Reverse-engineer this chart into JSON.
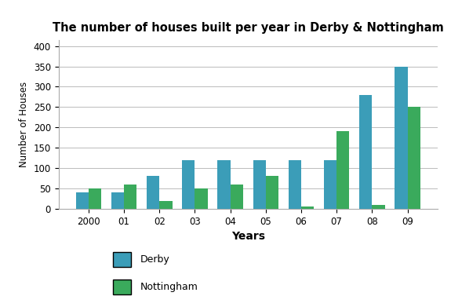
{
  "title": "The number of houses built per year in Derby & Nottingham",
  "years": [
    "2000",
    "01",
    "02",
    "03",
    "04",
    "05",
    "06",
    "07",
    "08",
    "09"
  ],
  "derby": [
    40,
    40,
    80,
    120,
    120,
    120,
    120,
    120,
    280,
    350
  ],
  "nottingham": [
    50,
    60,
    20,
    50,
    60,
    80,
    5,
    190,
    10,
    250
  ],
  "derby_color": "#3b9db8",
  "nottingham_color": "#3aaa5c",
  "ylabel": "Number of Houses",
  "xlabel": "Years",
  "ylim": [
    0,
    415
  ],
  "yticks": [
    0,
    50,
    100,
    150,
    200,
    250,
    300,
    350,
    400
  ],
  "bar_width": 0.36,
  "legend_derby": "Derby",
  "legend_nottingham": "Nottingham",
  "background_color": "#ffffff",
  "grid_color": "#bbbbbb"
}
